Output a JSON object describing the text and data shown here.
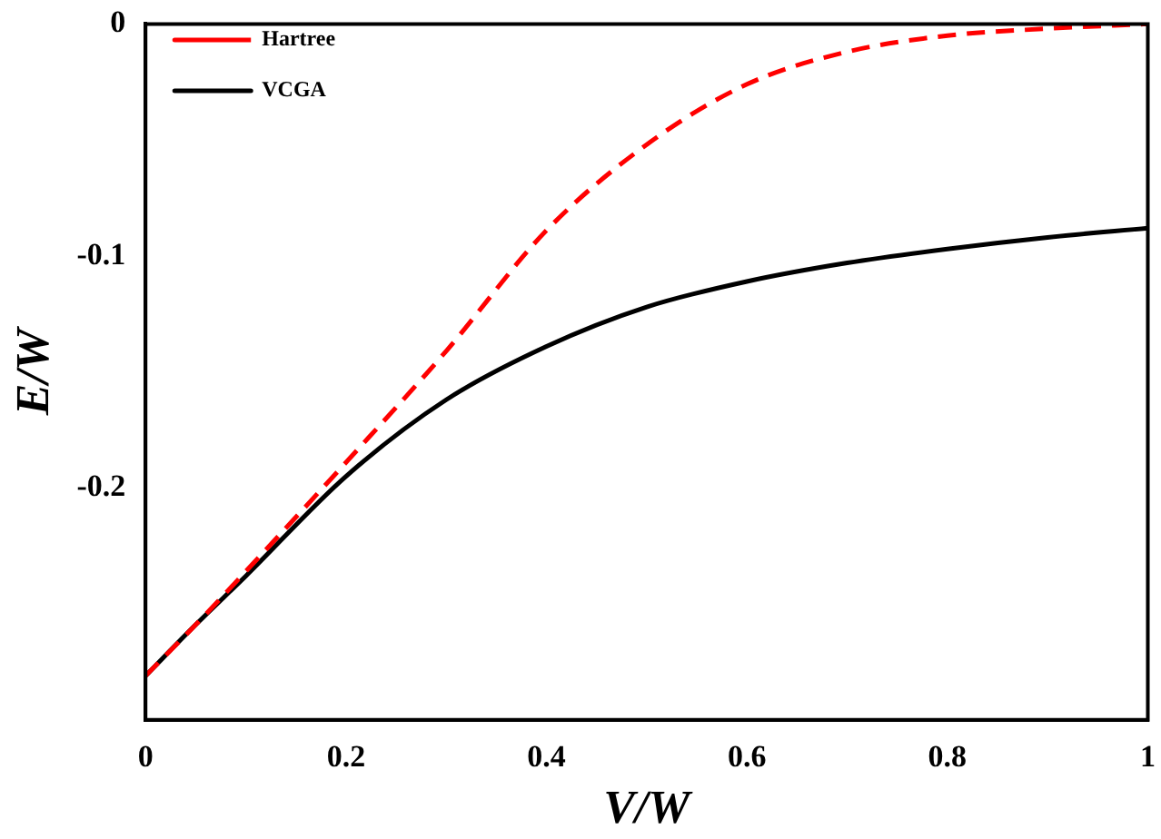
{
  "chart_data": {
    "type": "line",
    "xlabel": "V/W",
    "ylabel": "E/W",
    "xlim": [
      0,
      1
    ],
    "ylim": [
      -0.3,
      0
    ],
    "xticks": [
      0,
      0.2,
      0.4,
      0.6,
      0.8,
      1
    ],
    "yticks": [
      -0.2,
      -0.1,
      0
    ],
    "grid": false,
    "legend": "top left",
    "marker": "none",
    "x": [
      0,
      0.05,
      0.1,
      0.2,
      0.3,
      0.4,
      0.5,
      0.6,
      0.7,
      0.8,
      0.9,
      1
    ],
    "series": [
      {
        "name": "Hartree",
        "color": "#ff0000",
        "line_style": "dashed",
        "values": [
          -0.281,
          -0.259,
          -0.236,
          -0.189,
          -0.141,
          -0.089,
          -0.052,
          -0.026,
          -0.012,
          -0.005,
          -0.002,
          0
        ]
      },
      {
        "name": "VCGA",
        "color": "#000000",
        "line_style": "solid",
        "values": [
          -0.281,
          -0.259,
          -0.238,
          -0.195,
          -0.162,
          -0.139,
          -0.122,
          -0.111,
          -0.103,
          -0.097,
          -0.092,
          -0.088
        ]
      }
    ]
  }
}
